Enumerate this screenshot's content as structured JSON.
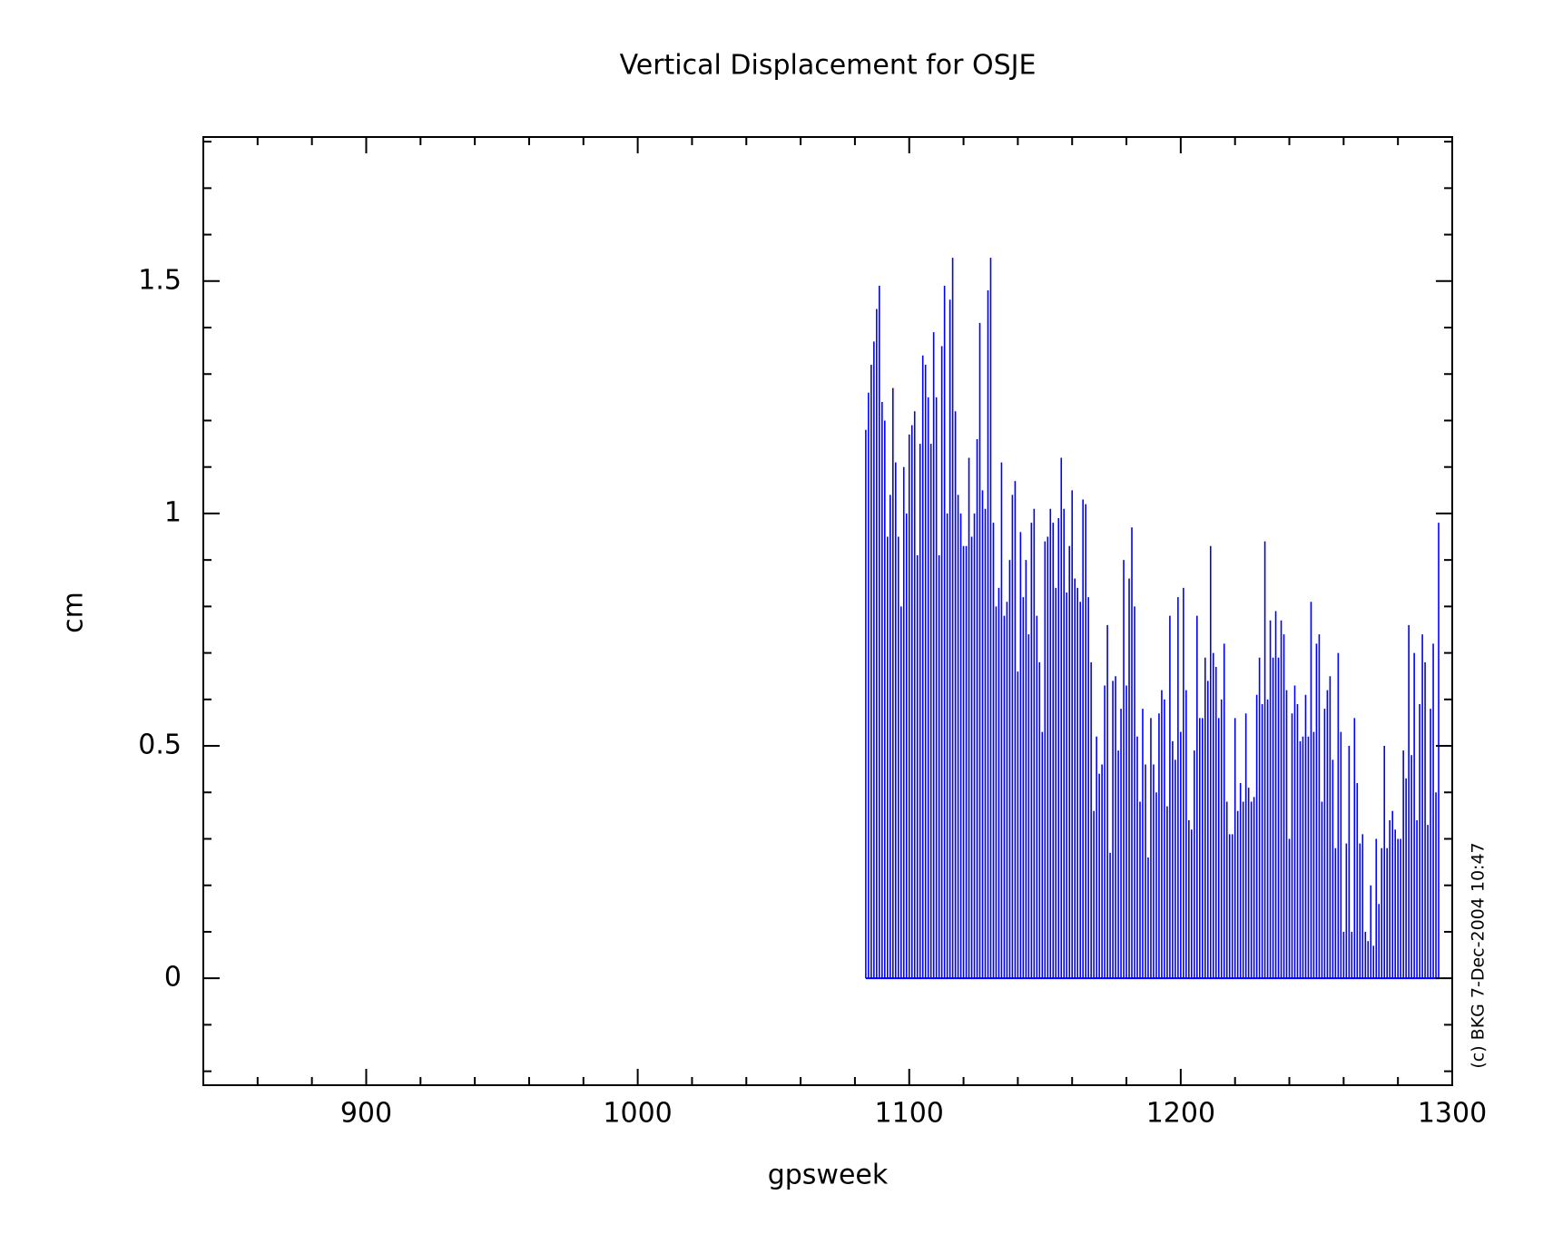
{
  "chart_data": {
    "type": "impulse",
    "title": "Vertical Displacement for OSJE",
    "x_label": "gpsweek",
    "y_label": "cm",
    "credit": "(c) BKG 7-Dec-2004 10:47",
    "color": "#0000ff",
    "xlim": [
      840,
      1300
    ],
    "ylim": [
      -0.23,
      1.81
    ],
    "xticks": [
      900,
      1000,
      1100,
      1200,
      1300
    ],
    "xticks_minor": [
      860,
      880,
      920,
      940,
      960,
      980,
      1020,
      1040,
      1060,
      1080,
      1120,
      1140,
      1160,
      1180,
      1220,
      1240,
      1260,
      1280
    ],
    "yticks": [
      0,
      0.5,
      1,
      1.5
    ],
    "yticks_minor": [
      -0.2,
      -0.1,
      0.1,
      0.2,
      0.3,
      0.4,
      0.6,
      0.7,
      0.8,
      0.9,
      1.1,
      1.2,
      1.3,
      1.4,
      1.6,
      1.7,
      1.8
    ],
    "x": [
      1084,
      1085,
      1086,
      1087,
      1088,
      1089,
      1090,
      1091,
      1092,
      1093,
      1094,
      1095,
      1096,
      1097,
      1098,
      1099,
      1100,
      1101,
      1102,
      1103,
      1104,
      1105,
      1106,
      1107,
      1108,
      1109,
      1110,
      1111,
      1112,
      1113,
      1114,
      1115,
      1116,
      1117,
      1118,
      1119,
      1120,
      1121,
      1122,
      1123,
      1124,
      1125,
      1126,
      1127,
      1128,
      1129,
      1130,
      1131,
      1132,
      1133,
      1134,
      1135,
      1136,
      1137,
      1138,
      1139,
      1140,
      1141,
      1142,
      1143,
      1144,
      1145,
      1146,
      1147,
      1148,
      1149,
      1150,
      1151,
      1152,
      1153,
      1154,
      1155,
      1156,
      1157,
      1158,
      1159,
      1160,
      1161,
      1162,
      1163,
      1164,
      1165,
      1166,
      1167,
      1168,
      1169,
      1170,
      1171,
      1172,
      1173,
      1174,
      1175,
      1176,
      1177,
      1178,
      1179,
      1180,
      1181,
      1182,
      1183,
      1184,
      1185,
      1186,
      1187,
      1188,
      1189,
      1190,
      1191,
      1192,
      1193,
      1194,
      1195,
      1196,
      1197,
      1198,
      1199,
      1200,
      1201,
      1202,
      1203,
      1204,
      1205,
      1206,
      1207,
      1208,
      1209,
      1210,
      1211,
      1212,
      1213,
      1214,
      1215,
      1216,
      1217,
      1218,
      1219,
      1220,
      1221,
      1222,
      1223,
      1224,
      1225,
      1226,
      1227,
      1228,
      1229,
      1230,
      1231,
      1232,
      1233,
      1234,
      1235,
      1236,
      1237,
      1238,
      1239,
      1240,
      1241,
      1242,
      1243,
      1244,
      1245,
      1246,
      1247,
      1248,
      1249,
      1250,
      1251,
      1252,
      1253,
      1254,
      1255,
      1256,
      1257,
      1258,
      1259,
      1260,
      1261,
      1262,
      1263,
      1264,
      1265,
      1266,
      1267,
      1268,
      1269,
      1270,
      1271,
      1272,
      1273,
      1274,
      1275,
      1276,
      1277,
      1278,
      1279,
      1280,
      1281,
      1282,
      1283,
      1284,
      1285,
      1286,
      1287,
      1288,
      1289,
      1290,
      1291,
      1292,
      1293,
      1294,
      1295
    ],
    "values": [
      1.18,
      1.26,
      1.32,
      1.37,
      1.44,
      1.49,
      1.24,
      1.2,
      0.95,
      1.04,
      1.27,
      1.11,
      0.95,
      0.8,
      1.1,
      1.0,
      1.17,
      1.19,
      1.22,
      0.91,
      1.15,
      1.34,
      1.32,
      1.25,
      1.15,
      1.39,
      1.25,
      0.91,
      1.36,
      1.49,
      1.0,
      1.46,
      1.55,
      1.22,
      1.04,
      1.0,
      0.93,
      0.93,
      1.12,
      0.95,
      1.0,
      1.16,
      1.41,
      1.05,
      1.01,
      1.48,
      1.55,
      0.98,
      0.8,
      0.84,
      1.11,
      0.78,
      0.81,
      0.9,
      1.04,
      1.07,
      0.66,
      0.96,
      0.82,
      0.9,
      0.74,
      0.98,
      1.01,
      0.78,
      0.68,
      0.53,
      0.94,
      0.95,
      1.01,
      0.98,
      0.84,
      0.99,
      1.12,
      1.01,
      0.83,
      0.93,
      1.05,
      0.86,
      0.84,
      0.81,
      1.03,
      1.02,
      0.82,
      0.68,
      0.36,
      0.52,
      0.44,
      0.46,
      0.63,
      0.76,
      0.27,
      0.64,
      0.65,
      0.49,
      0.58,
      0.9,
      0.63,
      0.86,
      0.97,
      0.8,
      0.52,
      0.38,
      0.58,
      0.46,
      0.26,
      0.56,
      0.46,
      0.4,
      0.57,
      0.62,
      0.6,
      0.37,
      0.78,
      0.51,
      0.47,
      0.82,
      0.53,
      0.84,
      0.62,
      0.34,
      0.32,
      0.49,
      0.78,
      0.56,
      0.56,
      0.69,
      0.64,
      0.93,
      0.7,
      0.67,
      0.56,
      0.6,
      0.72,
      0.38,
      0.31,
      0.31,
      0.56,
      0.36,
      0.42,
      0.38,
      0.57,
      0.41,
      0.38,
      0.39,
      0.61,
      0.69,
      0.59,
      0.94,
      0.6,
      0.77,
      0.69,
      0.79,
      0.69,
      0.77,
      0.74,
      0.62,
      0.3,
      0.57,
      0.63,
      0.59,
      0.51,
      0.52,
      0.61,
      0.52,
      0.81,
      0.53,
      0.72,
      0.74,
      0.38,
      0.58,
      0.62,
      0.65,
      0.47,
      0.28,
      0.7,
      0.53,
      0.1,
      0.29,
      0.5,
      0.1,
      0.56,
      0.42,
      0.29,
      0.31,
      0.1,
      0.08,
      0.2,
      0.07,
      0.3,
      0.16,
      0.28,
      0.5,
      0.28,
      0.34,
      0.36,
      0.32,
      0.3,
      0.3,
      0.49,
      0.43,
      0.76,
      0.48,
      0.7,
      0.34,
      0.59,
      0.74,
      0.68,
      0.33,
      0.58,
      0.72,
      0.4,
      0.98
    ]
  }
}
